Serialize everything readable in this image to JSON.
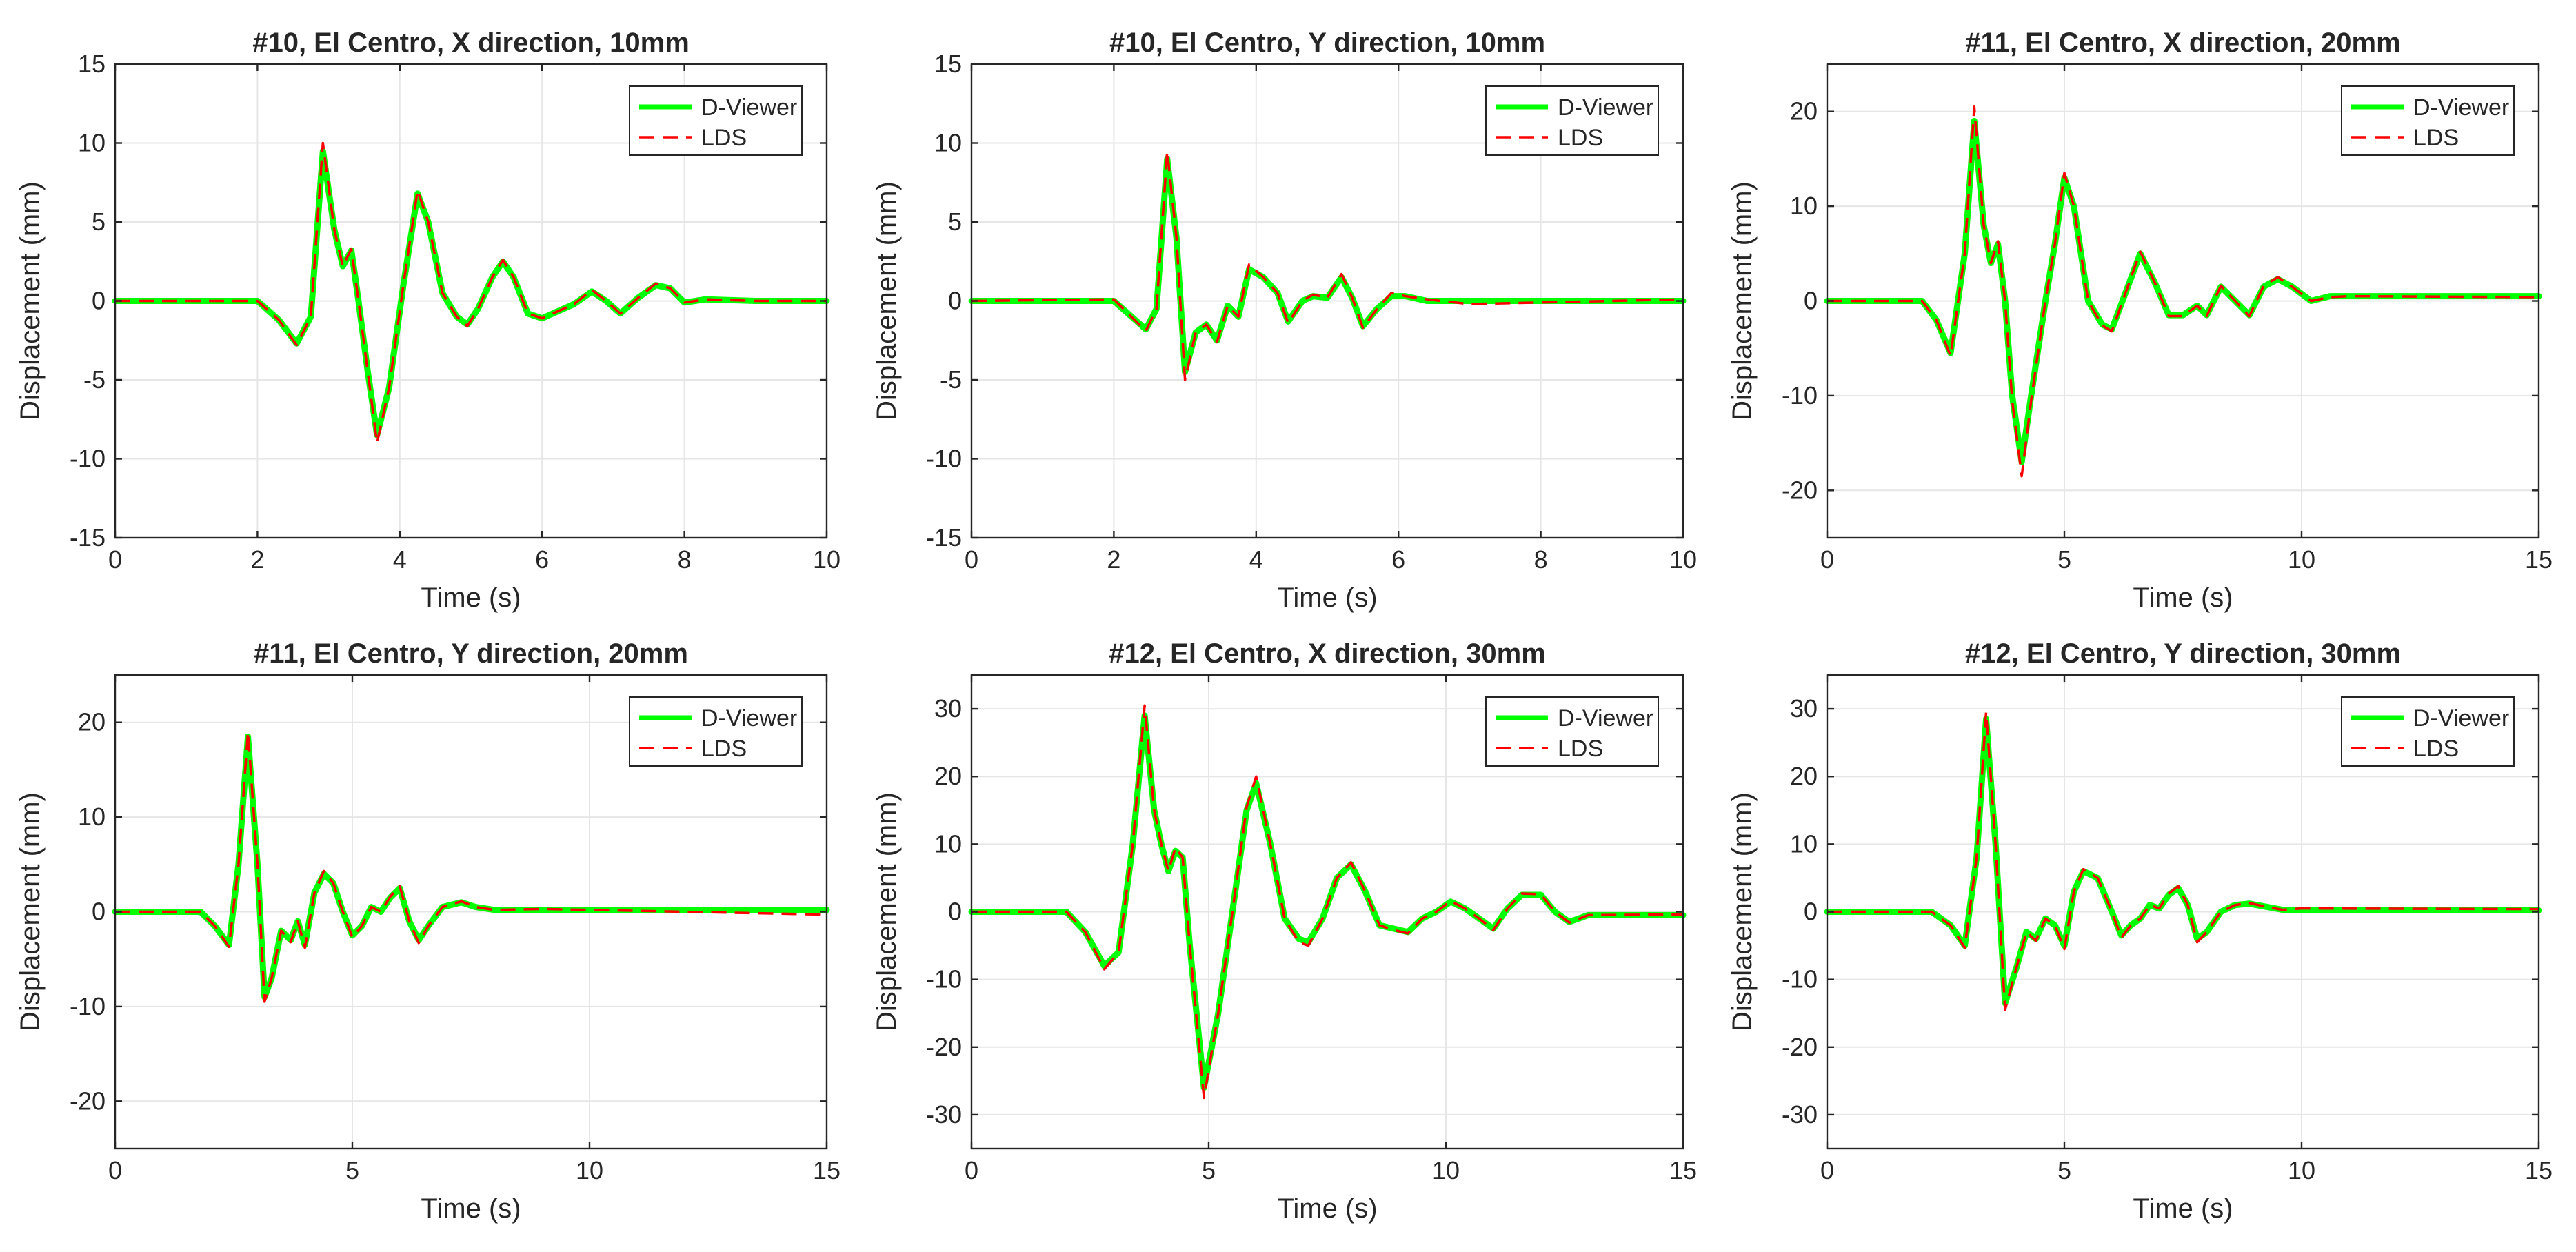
{
  "figure": {
    "legend_labels": [
      "D-Viewer",
      "LDS"
    ],
    "colors": {
      "dviewer": "#00ff00",
      "lds": "#ff0000",
      "axis": "#262626",
      "grid": "#e6e6e6"
    }
  },
  "chart_data": [
    {
      "type": "line",
      "title": "#10, El Centro, X direction, 10mm",
      "xlabel": "Time (s)",
      "ylabel": "Displacement (mm)",
      "xlim": [
        0,
        10
      ],
      "ylim": [
        -15,
        15
      ],
      "xticks": [
        0,
        2,
        4,
        6,
        8,
        10
      ],
      "yticks": [
        -15,
        -10,
        -5,
        0,
        5,
        10,
        15
      ],
      "grid": true,
      "legend_position": "top-right",
      "series": [
        {
          "name": "D-Viewer",
          "x": [
            0,
            2.0,
            2.3,
            2.55,
            2.75,
            2.92,
            3.08,
            3.2,
            3.32,
            3.42,
            3.55,
            3.68,
            3.85,
            4.05,
            4.25,
            4.4,
            4.6,
            4.8,
            4.95,
            5.1,
            5.3,
            5.45,
            5.6,
            5.8,
            6.0,
            6.2,
            6.45,
            6.7,
            6.9,
            7.1,
            7.35,
            7.6,
            7.8,
            8.0,
            8.3,
            9.0,
            10.0
          ],
          "y": [
            0,
            0,
            -1.2,
            -2.7,
            -1.0,
            9.5,
            4.5,
            2.2,
            3.2,
            0,
            -4.5,
            -8.5,
            -5.5,
            1.0,
            6.8,
            5.0,
            0.5,
            -1.0,
            -1.5,
            -0.5,
            1.5,
            2.5,
            1.5,
            -0.8,
            -1.1,
            -0.7,
            -0.2,
            0.6,
            0,
            -0.8,
            0.2,
            1.0,
            0.8,
            -0.1,
            0.1,
            0,
            0
          ]
        },
        {
          "name": "LDS",
          "x": [
            0,
            2.0,
            2.3,
            2.55,
            2.75,
            2.92,
            3.08,
            3.2,
            3.32,
            3.42,
            3.55,
            3.68,
            3.85,
            4.05,
            4.25,
            4.4,
            4.6,
            4.8,
            4.95,
            5.1,
            5.3,
            5.45,
            5.6,
            5.8,
            6.0,
            6.2,
            6.45,
            6.7,
            6.9,
            7.1,
            7.35,
            7.6,
            7.8,
            8.0,
            8.3,
            9.0,
            10.0
          ],
          "y": [
            0,
            0,
            -1.2,
            -2.8,
            -1.0,
            10.0,
            4.5,
            2.2,
            3.3,
            0,
            -4.5,
            -9.0,
            -5.5,
            1.0,
            7.0,
            5.0,
            0.5,
            -1.0,
            -1.6,
            -0.5,
            1.5,
            2.6,
            1.5,
            -0.8,
            -1.1,
            -0.7,
            -0.2,
            0.7,
            0,
            -0.8,
            0.2,
            1.1,
            0.8,
            -0.1,
            0.1,
            0,
            0
          ]
        }
      ]
    },
    {
      "type": "line",
      "title": "#10, El Centro, Y direction, 10mm",
      "xlabel": "Time (s)",
      "ylabel": "Displacement (mm)",
      "xlim": [
        0,
        10
      ],
      "ylim": [
        -15,
        15
      ],
      "xticks": [
        0,
        2,
        4,
        6,
        8,
        10
      ],
      "yticks": [
        -15,
        -10,
        -5,
        0,
        5,
        10,
        15
      ],
      "grid": true,
      "legend_position": "top-right",
      "series": [
        {
          "name": "D-Viewer",
          "x": [
            0,
            2.0,
            2.2,
            2.45,
            2.6,
            2.75,
            2.88,
            3.0,
            3.15,
            3.3,
            3.45,
            3.6,
            3.75,
            3.9,
            4.1,
            4.3,
            4.45,
            4.65,
            4.8,
            5.0,
            5.2,
            5.35,
            5.5,
            5.7,
            5.9,
            6.1,
            6.4,
            7.0,
            8.0,
            10.0
          ],
          "y": [
            0,
            0,
            -0.8,
            -1.8,
            -0.5,
            9.0,
            4.0,
            -4.5,
            -2.0,
            -1.5,
            -2.5,
            -0.3,
            -1.0,
            2.0,
            1.5,
            0.5,
            -1.3,
            0,
            0.3,
            0.2,
            1.5,
            0.2,
            -1.6,
            -0.5,
            0.3,
            0.3,
            0,
            0,
            0,
            0
          ]
        },
        {
          "name": "LDS",
          "x": [
            0,
            2.0,
            2.2,
            2.45,
            2.6,
            2.75,
            2.88,
            3.0,
            3.15,
            3.3,
            3.45,
            3.6,
            3.75,
            3.9,
            4.1,
            4.3,
            4.45,
            4.65,
            4.8,
            5.0,
            5.2,
            5.35,
            5.5,
            5.7,
            5.9,
            6.1,
            6.4,
            7.0,
            8.0,
            10.0
          ],
          "y": [
            0,
            0.1,
            -0.8,
            -1.9,
            -0.5,
            9.5,
            4.0,
            -5.0,
            -2.0,
            -1.5,
            -2.6,
            -0.3,
            -1.0,
            2.3,
            1.5,
            0.5,
            -1.4,
            0,
            0.4,
            0.2,
            1.7,
            0.2,
            -1.7,
            -0.5,
            0.5,
            0.3,
            0.1,
            -0.2,
            -0.1,
            0.1
          ]
        }
      ]
    },
    {
      "type": "line",
      "title": "#11, El Centro, X direction, 20mm",
      "xlabel": "Time (s)",
      "ylabel": "Displacement (mm)",
      "xlim": [
        0,
        15
      ],
      "ylim": [
        -25,
        25
      ],
      "xticks": [
        0,
        5,
        10,
        15
      ],
      "yticks": [
        -20,
        -10,
        0,
        10,
        20
      ],
      "grid": true,
      "legend_position": "top-right",
      "series": [
        {
          "name": "D-Viewer",
          "x": [
            0,
            2.0,
            2.3,
            2.6,
            2.9,
            3.1,
            3.3,
            3.45,
            3.6,
            3.75,
            3.9,
            4.1,
            4.3,
            4.6,
            4.8,
            5.0,
            5.2,
            5.5,
            5.8,
            6.0,
            6.3,
            6.6,
            6.9,
            7.2,
            7.5,
            7.8,
            8.0,
            8.3,
            8.6,
            8.9,
            9.2,
            9.5,
            9.8,
            10.2,
            10.6,
            11.0,
            15.0
          ],
          "y": [
            0,
            0,
            -2.0,
            -5.5,
            5.0,
            19.0,
            8.0,
            4.0,
            6.0,
            0,
            -10.0,
            -17.0,
            -10.0,
            0,
            6.0,
            13.0,
            10.0,
            0,
            -2.5,
            -3.0,
            1.0,
            5.0,
            2.0,
            -1.5,
            -1.5,
            -0.5,
            -1.5,
            1.5,
            0,
            -1.5,
            1.5,
            2.3,
            1.5,
            0,
            0.5,
            0.5,
            0.5
          ]
        },
        {
          "name": "LDS",
          "x": [
            0,
            2.0,
            2.3,
            2.6,
            2.9,
            3.1,
            3.3,
            3.45,
            3.6,
            3.75,
            3.9,
            4.1,
            4.3,
            4.6,
            4.8,
            5.0,
            5.2,
            5.5,
            5.8,
            6.0,
            6.3,
            6.6,
            6.9,
            7.2,
            7.5,
            7.8,
            8.0,
            8.3,
            8.6,
            8.9,
            9.2,
            9.5,
            9.8,
            10.2,
            10.6,
            11.0,
            15.0
          ],
          "y": [
            0,
            0,
            -2.0,
            -5.8,
            5.0,
            20.5,
            8.0,
            4.0,
            6.3,
            0,
            -10.5,
            -18.5,
            -10.5,
            0,
            6.0,
            13.5,
            10.0,
            0,
            -2.6,
            -3.2,
            1.0,
            5.2,
            2.0,
            -1.6,
            -1.6,
            -0.5,
            -1.6,
            1.6,
            0,
            -1.6,
            1.6,
            2.5,
            1.5,
            0,
            0.4,
            0.5,
            0.4
          ]
        }
      ]
    },
    {
      "type": "line",
      "title": "#11, El Centro, Y direction, 20mm",
      "xlabel": "Time (s)",
      "ylabel": "Displacement (mm)",
      "xlim": [
        0,
        15
      ],
      "ylim": [
        -25,
        25
      ],
      "xticks": [
        0,
        5,
        10,
        15
      ],
      "yticks": [
        -20,
        -10,
        0,
        10,
        20
      ],
      "grid": true,
      "legend_position": "top-right",
      "series": [
        {
          "name": "D-Viewer",
          "x": [
            0,
            1.8,
            2.1,
            2.4,
            2.6,
            2.8,
            3.0,
            3.15,
            3.3,
            3.5,
            3.7,
            3.85,
            4.0,
            4.2,
            4.4,
            4.6,
            4.8,
            5.0,
            5.2,
            5.4,
            5.6,
            5.8,
            6.0,
            6.2,
            6.4,
            6.6,
            6.9,
            7.3,
            7.6,
            8.0,
            9.0,
            15.0
          ],
          "y": [
            0,
            0,
            -1.5,
            -3.5,
            5.0,
            18.5,
            5.0,
            -9.0,
            -7.0,
            -2.0,
            -3.0,
            -1.0,
            -3.5,
            2.0,
            4.0,
            3.0,
            0,
            -2.5,
            -1.5,
            0.5,
            0,
            1.5,
            2.5,
            -1.0,
            -3.0,
            -1.5,
            0.5,
            1.0,
            0.5,
            0.2,
            0.2,
            0.2
          ]
        },
        {
          "name": "LDS",
          "x": [
            0,
            1.8,
            2.1,
            2.4,
            2.6,
            2.8,
            3.0,
            3.15,
            3.3,
            3.5,
            3.7,
            3.85,
            4.0,
            4.2,
            4.4,
            4.6,
            4.8,
            5.0,
            5.2,
            5.4,
            5.6,
            5.8,
            6.0,
            6.2,
            6.4,
            6.6,
            6.9,
            7.3,
            7.6,
            8.0,
            9.0,
            15.0
          ],
          "y": [
            0,
            0,
            -1.5,
            -3.7,
            5.0,
            19.0,
            5.0,
            -9.5,
            -7.0,
            -2.0,
            -3.2,
            -1.0,
            -3.8,
            2.0,
            4.3,
            3.0,
            0,
            -2.7,
            -1.5,
            0.5,
            0,
            1.6,
            2.7,
            -1.0,
            -3.3,
            -1.5,
            0.5,
            1.1,
            0.5,
            0.2,
            0.3,
            -0.3
          ]
        }
      ]
    },
    {
      "type": "line",
      "title": "#12, El Centro, X direction, 30mm",
      "xlabel": "Time (s)",
      "ylabel": "Displacement (mm)",
      "xlim": [
        0,
        15
      ],
      "ylim": [
        -35,
        35
      ],
      "xticks": [
        0,
        5,
        10,
        15
      ],
      "yticks": [
        -30,
        -20,
        -10,
        0,
        10,
        20,
        30
      ],
      "grid": true,
      "legend_position": "top-right",
      "series": [
        {
          "name": "D-Viewer",
          "x": [
            0,
            2.0,
            2.4,
            2.8,
            3.1,
            3.4,
            3.65,
            3.85,
            4.0,
            4.15,
            4.3,
            4.45,
            4.6,
            4.9,
            5.2,
            5.5,
            5.8,
            6.0,
            6.3,
            6.6,
            6.9,
            7.1,
            7.4,
            7.7,
            8.0,
            8.3,
            8.6,
            8.9,
            9.2,
            9.5,
            9.8,
            10.1,
            10.4,
            10.7,
            11.0,
            11.3,
            11.6,
            12.0,
            12.3,
            12.6,
            13.0,
            15.0
          ],
          "y": [
            0,
            0,
            -3.0,
            -8.0,
            -6.0,
            10.0,
            29.0,
            15.0,
            10.0,
            6.0,
            9.0,
            8.0,
            -5.0,
            -26.0,
            -15.0,
            0,
            15.0,
            19.0,
            10.0,
            -1.0,
            -4.0,
            -4.5,
            -1.0,
            5.0,
            7.0,
            3.0,
            -2.0,
            -2.5,
            -3.0,
            -1.0,
            0,
            1.5,
            0.5,
            -1.0,
            -2.5,
            0.5,
            2.5,
            2.5,
            0,
            -1.5,
            -0.5,
            -0.5
          ]
        },
        {
          "name": "LDS",
          "x": [
            0,
            2.0,
            2.4,
            2.8,
            3.1,
            3.4,
            3.65,
            3.85,
            4.0,
            4.15,
            4.3,
            4.45,
            4.6,
            4.9,
            5.2,
            5.5,
            5.8,
            6.0,
            6.3,
            6.6,
            6.9,
            7.1,
            7.4,
            7.7,
            8.0,
            8.3,
            8.6,
            8.9,
            9.2,
            9.5,
            9.8,
            10.1,
            10.4,
            10.7,
            11.0,
            11.3,
            11.6,
            12.0,
            12.3,
            12.6,
            13.0,
            15.0
          ],
          "y": [
            0,
            0,
            -3.0,
            -8.5,
            -6.0,
            10.0,
            30.5,
            15.0,
            10.0,
            6.0,
            9.5,
            8.0,
            -5.0,
            -27.5,
            -15.0,
            0,
            15.5,
            20.0,
            10.0,
            -1.0,
            -4.5,
            -5.0,
            -1.0,
            5.0,
            7.3,
            3.0,
            -2.0,
            -2.7,
            -3.2,
            -1.0,
            0,
            1.6,
            0.5,
            -1.0,
            -2.7,
            0.5,
            2.7,
            2.6,
            0,
            -1.6,
            -0.5,
            -0.4
          ]
        }
      ]
    },
    {
      "type": "line",
      "title": "#12, El Centro, Y direction, 30mm",
      "xlabel": "Time (s)",
      "ylabel": "Displacement (mm)",
      "xlim": [
        0,
        15
      ],
      "ylim": [
        -35,
        35
      ],
      "xticks": [
        0,
        5,
        10,
        15
      ],
      "yticks": [
        -30,
        -20,
        -10,
        0,
        10,
        20,
        30
      ],
      "grid": true,
      "legend_position": "top-right",
      "series": [
        {
          "name": "D-Viewer",
          "x": [
            0,
            2.2,
            2.6,
            2.9,
            3.15,
            3.35,
            3.55,
            3.75,
            4.0,
            4.2,
            4.4,
            4.6,
            4.8,
            5.0,
            5.2,
            5.4,
            5.7,
            6.0,
            6.2,
            6.4,
            6.6,
            6.8,
            7.0,
            7.2,
            7.4,
            7.6,
            7.8,
            8.0,
            8.3,
            8.6,
            8.9,
            9.2,
            9.6,
            10.0,
            15.0
          ],
          "y": [
            0,
            0,
            -2.0,
            -5.0,
            8.0,
            28.5,
            10.0,
            -13.5,
            -8.0,
            -3.0,
            -4.0,
            -1.0,
            -2.0,
            -5.0,
            3.0,
            6.0,
            5.0,
            0,
            -3.5,
            -2.0,
            -1.0,
            1.0,
            0.5,
            2.5,
            3.5,
            1.0,
            -4.0,
            -3.0,
            0,
            1.0,
            1.2,
            0.8,
            0.3,
            0.2,
            0.2
          ]
        },
        {
          "name": "LDS",
          "x": [
            0,
            2.2,
            2.6,
            2.9,
            3.15,
            3.35,
            3.55,
            3.75,
            4.0,
            4.2,
            4.4,
            4.6,
            4.8,
            5.0,
            5.2,
            5.4,
            5.7,
            6.0,
            6.2,
            6.4,
            6.6,
            6.8,
            7.0,
            7.2,
            7.4,
            7.6,
            7.8,
            8.0,
            8.3,
            8.6,
            8.9,
            9.2,
            9.6,
            10.0,
            15.0
          ],
          "y": [
            0,
            0,
            -2.0,
            -5.3,
            8.0,
            29.5,
            10.0,
            -14.5,
            -8.0,
            -3.0,
            -4.3,
            -1.0,
            -2.0,
            -5.5,
            3.0,
            6.3,
            5.0,
            0,
            -3.8,
            -2.0,
            -1.0,
            1.0,
            0.5,
            2.7,
            3.8,
            1.0,
            -4.5,
            -3.0,
            0,
            1.0,
            1.3,
            0.8,
            0.3,
            0.5,
            0.4
          ]
        }
      ]
    }
  ]
}
